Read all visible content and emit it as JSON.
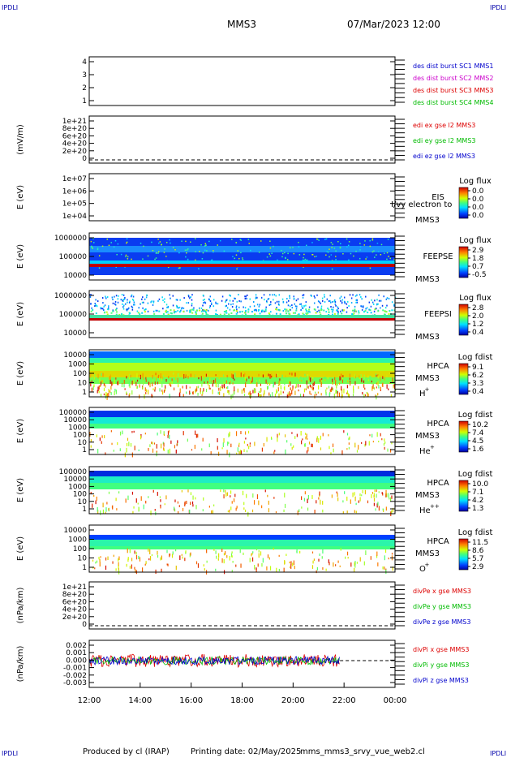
{
  "header": {
    "corner_tl": "IPDLI",
    "corner_tr": "IPDLI",
    "corner_bl": "IPDLI",
    "corner_br": "IPDLI",
    "spacecraft": "MMS3",
    "datetime": "07/Mar/2023 12:00"
  },
  "footer": {
    "produced_by": "Produced by cl (IRAP)",
    "printing_date": "Printing date: 02/May/2025",
    "filename": "mms_mms3_srvy_vue_web2.cl"
  },
  "colors": {
    "blue": "#0000cc",
    "magenta": "#cc00cc",
    "red": "#dd0000",
    "green": "#00bb00",
    "corner": "#0000aa"
  },
  "chart_data": {
    "type": "heatmap",
    "x_tick_labels": [
      "12:00",
      "14:00",
      "16:00",
      "18:00",
      "20:00",
      "22:00",
      "00:00"
    ],
    "x_range_hours": [
      12,
      24
    ],
    "panels": [
      {
        "id": "burst",
        "ylabel": "",
        "y_ticks": [
          "4",
          "3",
          "2",
          "1"
        ],
        "legend": [
          {
            "text": "des dist burst SC1 MMS1",
            "color": "#0000cc"
          },
          {
            "text": "des dist burst SC2 MMS2",
            "color": "#cc00cc"
          },
          {
            "text": "des dist burst SC3 MMS3",
            "color": "#dd0000"
          },
          {
            "text": "des dist burst SC4 MMS4",
            "color": "#00bb00"
          }
        ]
      },
      {
        "id": "edi",
        "ylabel": "(mV/m)",
        "y_ticks": [
          "1e+21",
          "8e+20",
          "6e+20",
          "4e+20",
          "2e+20",
          "0"
        ],
        "legend": [
          {
            "text": "edi ex gse l2 MMS3",
            "color": "#dd0000"
          },
          {
            "text": "edi ey gse l2 MMS3",
            "color": "#00bb00"
          },
          {
            "text": "edi ez gse l2 MMS3",
            "color": "#0000cc"
          }
        ]
      },
      {
        "id": "eis",
        "ylabel": "E (eV)",
        "y_ticks": [
          "1e+07",
          "1e+06",
          "1e+05",
          "1e+04"
        ],
        "instrument": [
          "EIS",
          "MMS3"
        ],
        "overlay_text": "I/vy electron to",
        "colorbar_title": "Log flux",
        "colorbar_ticks": [
          "0.0",
          "0.0",
          "0.0",
          "0.0"
        ]
      },
      {
        "id": "feepse",
        "ylabel": "E (eV)",
        "y_ticks": [
          "1000000",
          "100000",
          "10000"
        ],
        "instrument": [
          "FEEPSE",
          "MMS3"
        ],
        "colorbar_title": "Log flux",
        "colorbar_ticks": [
          "2.9",
          "1.8",
          "0.7",
          "-0.5"
        ]
      },
      {
        "id": "feepsi",
        "ylabel": "E (eV)",
        "y_ticks": [
          "1000000",
          "100000",
          "10000"
        ],
        "instrument": [
          "FEEPSI",
          "MMS3"
        ],
        "colorbar_title": "Log flux",
        "colorbar_ticks": [
          "2.8",
          "2.0",
          "1.2",
          "0.4"
        ]
      },
      {
        "id": "hpca_h",
        "ylabel": "E (eV)",
        "y_ticks": [
          "10000",
          "1000",
          "100",
          "10",
          "1"
        ],
        "instrument": [
          "HPCA",
          "MMS3"
        ],
        "species": "H",
        "charge": "+",
        "colorbar_title": "Log fdist",
        "colorbar_ticks": [
          "9.1",
          "6.2",
          "3.3",
          "0.4"
        ]
      },
      {
        "id": "hpca_he",
        "ylabel": "E (eV)",
        "y_ticks": [
          "100000",
          "10000",
          "1000",
          "100",
          "10",
          "1"
        ],
        "instrument": [
          "HPCA",
          "MMS3"
        ],
        "species": "He",
        "charge": "+",
        "colorbar_title": "Log fdist",
        "colorbar_ticks": [
          "10.2",
          "7.4",
          "4.5",
          "1.6"
        ]
      },
      {
        "id": "hpca_hepp",
        "ylabel": "E (eV)",
        "y_ticks": [
          "100000",
          "10000",
          "1000",
          "100",
          "10",
          "1"
        ],
        "instrument": [
          "HPCA",
          "MMS3"
        ],
        "species": "He",
        "charge": "++",
        "colorbar_title": "Log fdist",
        "colorbar_ticks": [
          "10.0",
          "7.1",
          "4.2",
          "1.3"
        ]
      },
      {
        "id": "hpca_o",
        "ylabel": "E (eV)",
        "y_ticks": [
          "10000",
          "1000",
          "100",
          "10",
          "1"
        ],
        "instrument": [
          "HPCA",
          "MMS3"
        ],
        "species": "O",
        "charge": "+",
        "colorbar_title": "Log fdist",
        "colorbar_ticks": [
          "11.5",
          "8.6",
          "5.7",
          "2.9"
        ]
      },
      {
        "id": "divpe",
        "ylabel": "(nPa/km)",
        "y_ticks": [
          "1e+21",
          "8e+20",
          "6e+20",
          "4e+20",
          "2e+20",
          "0"
        ],
        "legend": [
          {
            "text": "divPe x gse MMS3",
            "color": "#dd0000"
          },
          {
            "text": "divPe y gse MMS3",
            "color": "#00bb00"
          },
          {
            "text": "divPe z gse MMS3",
            "color": "#0000cc"
          }
        ]
      },
      {
        "id": "divpi",
        "ylabel": "(nPa/km)",
        "y_ticks": [
          "0.002",
          "0.001",
          "0.000",
          "-0.001",
          "-0.002",
          "-0.003"
        ],
        "legend": [
          {
            "text": "divPi x gse MMS3",
            "color": "#dd0000"
          },
          {
            "text": "divPi y gse MMS3",
            "color": "#00bb00"
          },
          {
            "text": "divPi z gse MMS3",
            "color": "#0000cc"
          }
        ]
      }
    ]
  }
}
